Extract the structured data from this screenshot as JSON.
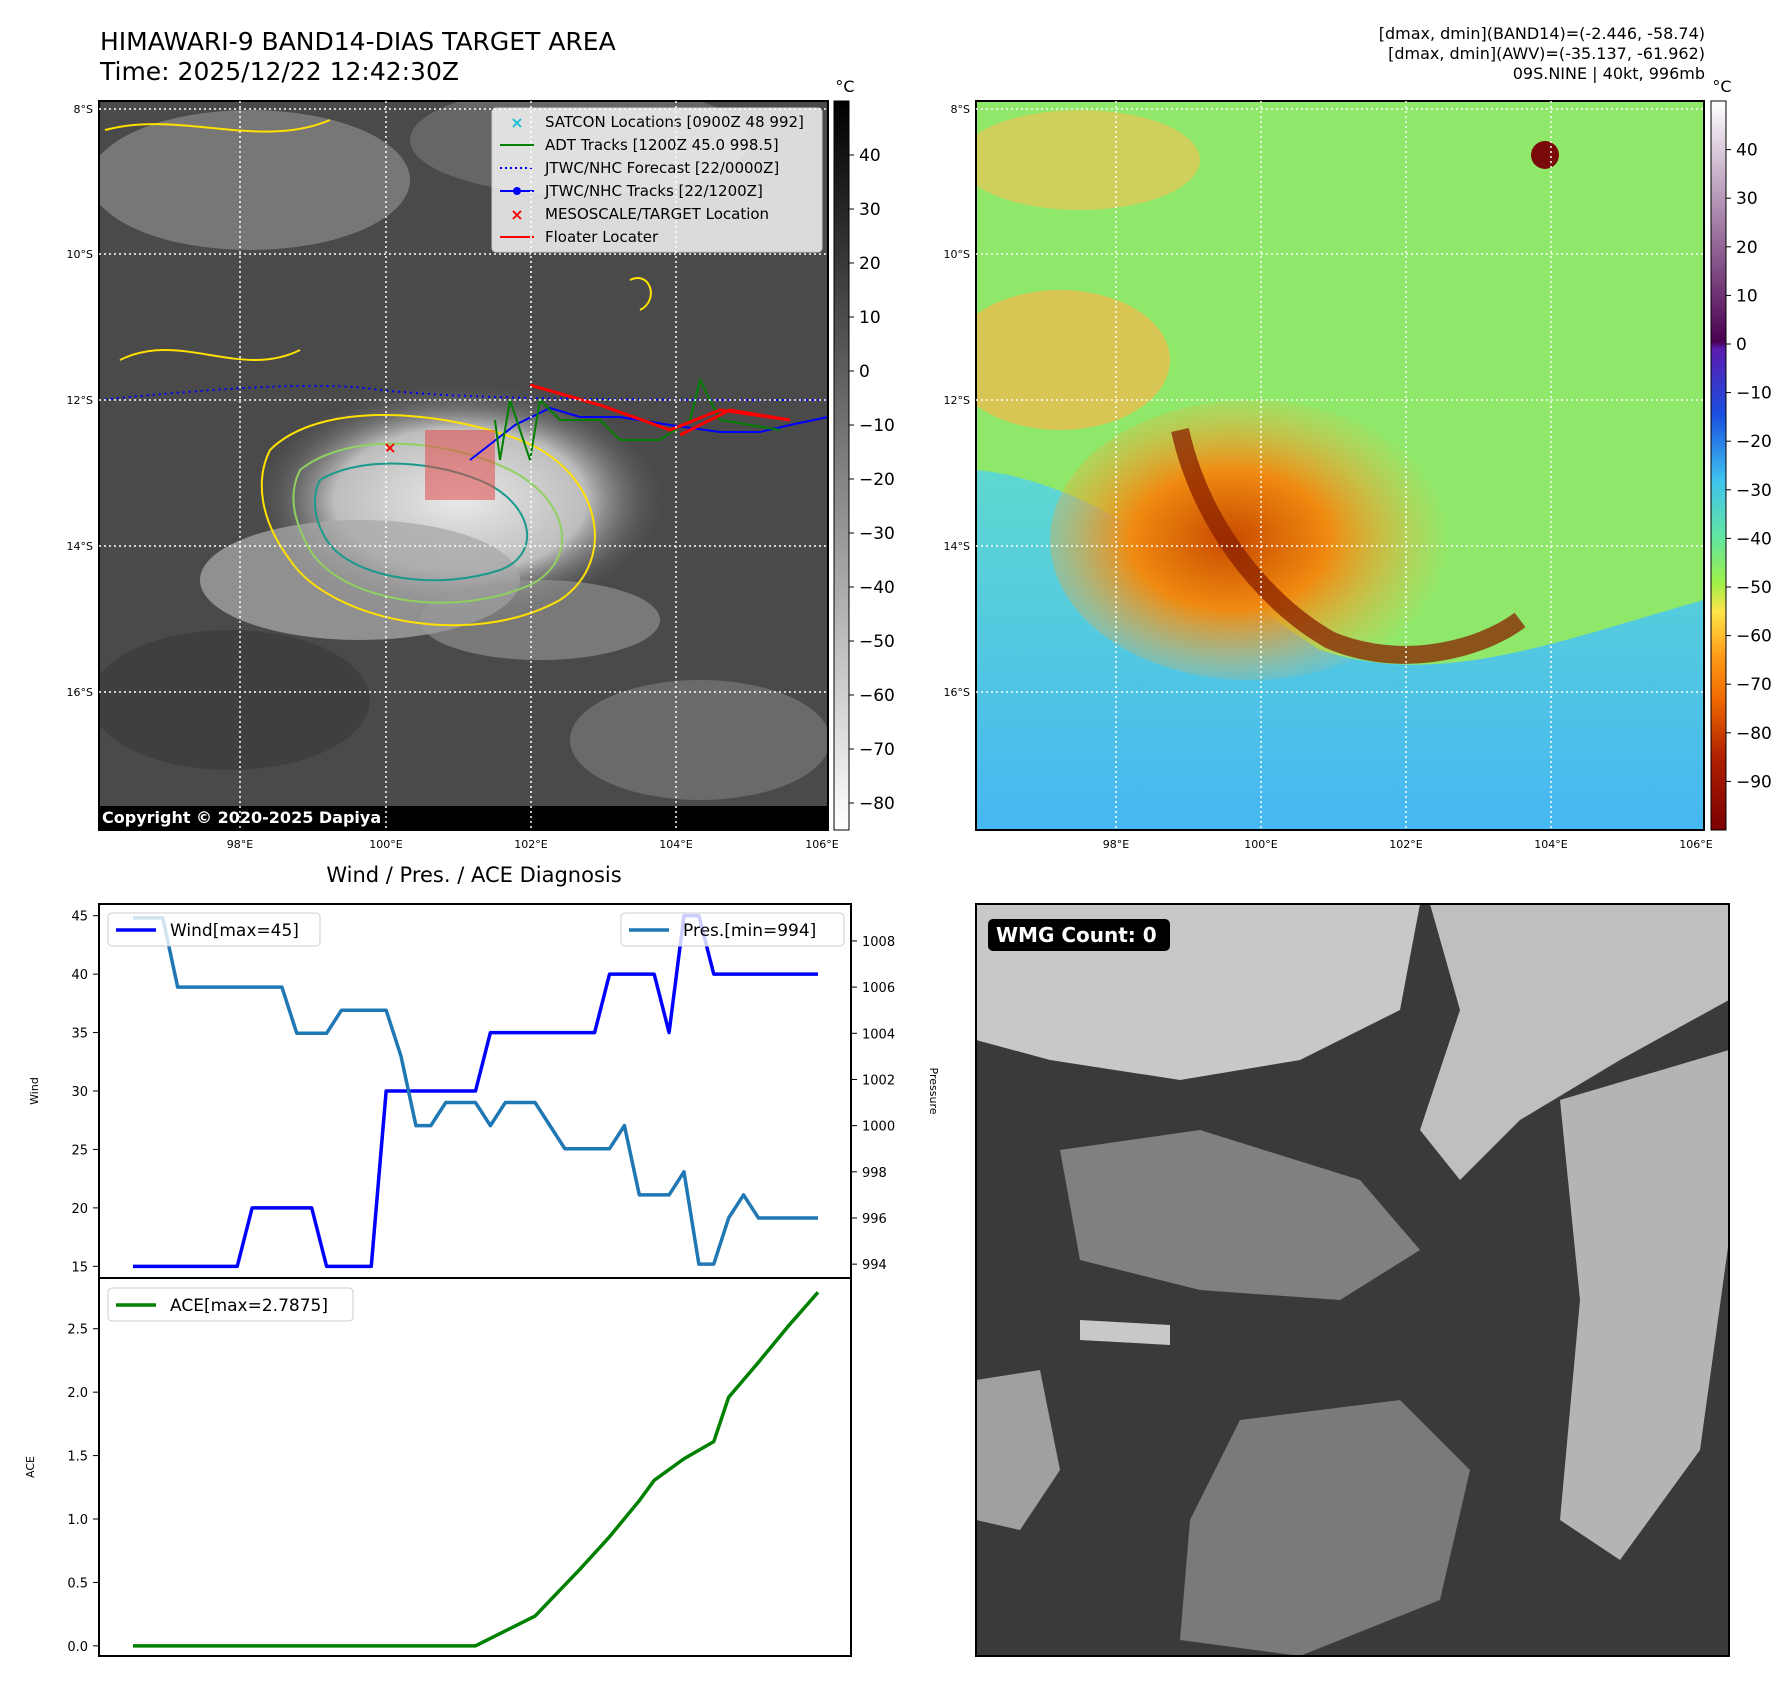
{
  "title": {
    "line1": "HIMAWARI-9 BAND14-DIAS TARGET AREA",
    "line2": "Time: 2025/12/22 12:42:30Z"
  },
  "info": {
    "line1": "[dmax, dmin](BAND14)=(-2.446, -58.74)",
    "line2": "[dmax, dmin](AWV)=(-35.137, -61.962)",
    "line3": "09S.NINE | 40kt, 996mb"
  },
  "copyright": "Copyright © 2020-2025 Dapiya",
  "wmg_label": "WMG Count: 0",
  "unit_label": "°C",
  "map": {
    "lat_labels": [
      "8°S",
      "10°S",
      "12°S",
      "14°S",
      "16°S"
    ],
    "lon_labels": [
      "98°E",
      "100°E",
      "102°E",
      "104°E",
      "106°E"
    ]
  },
  "ir_colorbar": {
    "ticks": [
      40,
      30,
      20,
      10,
      0,
      -10,
      -20,
      -30,
      -40,
      -50,
      -60,
      -70,
      -80
    ],
    "range": [
      -85,
      50
    ]
  },
  "awv_colorbar": {
    "ticks": [
      40,
      30,
      20,
      10,
      0,
      -10,
      -20,
      -30,
      -40,
      -50,
      -60,
      -70,
      -80,
      -90
    ],
    "range": [
      -100,
      50
    ]
  },
  "legend": [
    {
      "label": "SATCON Locations [0900Z 48 992]",
      "color": "#17becf",
      "style": "x"
    },
    {
      "label": "ADT Tracks [1200Z 45.0 998.5]",
      "color": "#008000",
      "style": "line"
    },
    {
      "label": "JTWC/NHC Forecast [22/0000Z]",
      "color": "#0000ff",
      "style": "dotted"
    },
    {
      "label": "JTWC/NHC Tracks [22/1200Z]",
      "color": "#0000ff",
      "style": "line-dot"
    },
    {
      "label": "MESOSCALE/TARGET Location",
      "color": "#ff0000",
      "style": "x"
    },
    {
      "label": "Floater Locater",
      "color": "#ff0000",
      "style": "line"
    }
  ],
  "chart_data": [
    {
      "type": "line",
      "title": "Wind / Pres. / ACE Diagnosis",
      "ylabel": "Wind",
      "y2label": "Pressure",
      "ylim": [
        14,
        46
      ],
      "y2lim": [
        993.4,
        1009.6
      ],
      "yticks": [
        15,
        20,
        25,
        30,
        35,
        40,
        45
      ],
      "y2ticks": [
        994,
        996,
        998,
        1000,
        1002,
        1004,
        1006,
        1008
      ],
      "x": [
        0,
        1,
        2,
        3,
        4,
        5,
        6,
        7,
        8,
        9,
        10,
        11,
        12,
        13,
        14,
        15,
        16,
        17,
        18,
        19,
        20,
        21,
        22,
        23,
        24,
        25,
        26,
        27,
        28,
        29,
        30,
        31,
        32,
        33,
        34,
        35,
        36,
        37,
        38,
        39,
        40,
        41,
        42,
        43,
        44,
        45,
        46
      ],
      "series": [
        {
          "name": "Wind[max=45]",
          "axis": "left",
          "color": "#0000ff",
          "values": [
            15,
            15,
            15,
            15,
            15,
            15,
            15,
            15,
            20,
            20,
            20,
            20,
            20,
            15,
            15,
            15,
            15,
            30,
            30,
            30,
            30,
            30,
            30,
            30,
            35,
            35,
            35,
            35,
            35,
            35,
            35,
            35,
            40,
            40,
            40,
            40,
            35,
            45,
            45,
            40,
            40,
            40,
            40,
            40,
            40,
            40,
            40
          ]
        },
        {
          "name": "Pres.[min=994]",
          "axis": "right",
          "color": "#1f77b4",
          "values": [
            1009,
            1009,
            1009,
            1006,
            1006,
            1006,
            1006,
            1006,
            1006,
            1006,
            1006,
            1004,
            1004,
            1004,
            1005,
            1005,
            1005,
            1005,
            1003,
            1000,
            1000,
            1001,
            1001,
            1001,
            1000,
            1001,
            1001,
            1001,
            1000,
            999,
            999,
            999,
            999,
            1000,
            997,
            997,
            997,
            998,
            994,
            994,
            996,
            997,
            996,
            996,
            996,
            996,
            996
          ]
        }
      ]
    },
    {
      "type": "line",
      "ylabel": "ACE",
      "ylim": [
        -0.08,
        2.9
      ],
      "yticks": [
        0.0,
        0.5,
        1.0,
        1.5,
        2.0,
        2.5
      ],
      "x": [
        0,
        23,
        27,
        28,
        30,
        32,
        34,
        35,
        37,
        39,
        40,
        42,
        44,
        46
      ],
      "series": [
        {
          "name": "ACE[max=2.7875]",
          "color": "#008000",
          "values": [
            0.0,
            0.0,
            0.235,
            0.3575,
            0.6025,
            0.86,
            1.145,
            1.305,
            1.475,
            1.61,
            1.96,
            2.235,
            2.52,
            2.7875
          ]
        }
      ]
    }
  ]
}
